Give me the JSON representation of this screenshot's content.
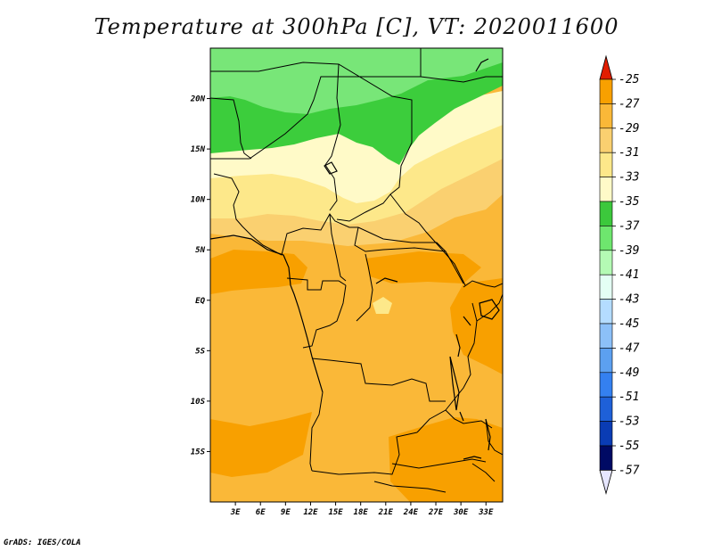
{
  "title": "Temperature at 300hPa [C], VT: 2020011600",
  "credit": "GrADS: IGES/COLA",
  "map": {
    "lon_range": [
      0,
      35
    ],
    "lat_range": [
      -20,
      25
    ],
    "lat_ticks": [
      {
        "value": 20,
        "label": "20N"
      },
      {
        "value": 15,
        "label": "15N"
      },
      {
        "value": 10,
        "label": "10N"
      },
      {
        "value": 5,
        "label": "5N"
      },
      {
        "value": 0,
        "label": "EQ"
      },
      {
        "value": -5,
        "label": "5S"
      },
      {
        "value": -10,
        "label": "10S"
      },
      {
        "value": -15,
        "label": "15S"
      }
    ],
    "lon_ticks": [
      {
        "value": 3,
        "label": "3E"
      },
      {
        "value": 6,
        "label": "6E"
      },
      {
        "value": 9,
        "label": "9E"
      },
      {
        "value": 12,
        "label": "12E"
      },
      {
        "value": 15,
        "label": "15E"
      },
      {
        "value": 18,
        "label": "18E"
      },
      {
        "value": 21,
        "label": "21E"
      },
      {
        "value": 24,
        "label": "24E"
      },
      {
        "value": 27,
        "label": "27E"
      },
      {
        "value": 30,
        "label": "30E"
      },
      {
        "value": 33,
        "label": "33E"
      }
    ]
  },
  "colorbar": {
    "labels": [
      "-25",
      "-27",
      "-29",
      "-31",
      "-33",
      "-35",
      "-37",
      "-39",
      "-41",
      "-43",
      "-45",
      "-47",
      "-49",
      "-51",
      "-53",
      "-55",
      "-57"
    ],
    "colors": [
      "#f05000",
      "#f8a000",
      "#fab838",
      "#fad070",
      "#fde88a",
      "#fffac8",
      "#3cc83c",
      "#6ee66e",
      "#b4fab4",
      "#e4fff4",
      "#b4dcff",
      "#8cc0f8",
      "#5ca0f0",
      "#3480f0",
      "#1e60d8",
      "#0a3cb4",
      "#000a64"
    ],
    "top_arrow": "#e11d00",
    "bottom_arrow": "#e6e6ff"
  },
  "field": {
    "c_green_dark": "#3ccd3c",
    "c_green_light": "#78e678",
    "c_pale": "#fffac8",
    "c_light_yellow": "#fde88a",
    "c_yellow": "#fad070",
    "c_orange_light": "#fab838",
    "c_orange": "#f8a000"
  }
}
